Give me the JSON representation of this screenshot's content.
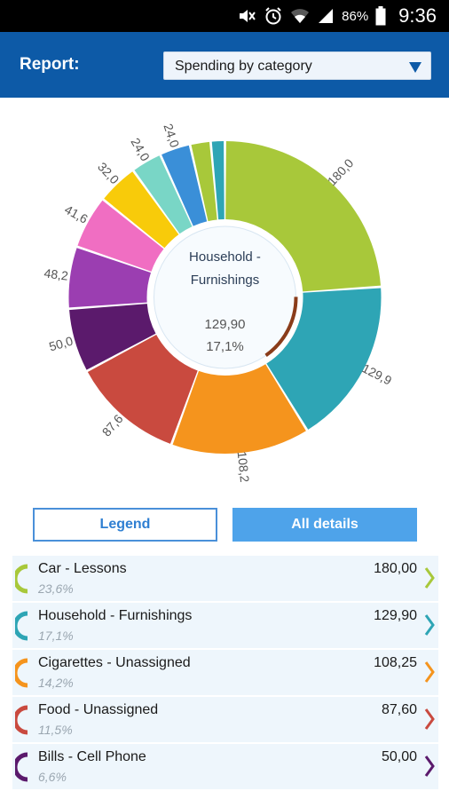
{
  "status_bar": {
    "battery_text": "86%",
    "time": "9:36",
    "icons": [
      "mute-icon",
      "alarm-icon",
      "wifi-icon",
      "signal-icon",
      "battery-icon"
    ]
  },
  "header": {
    "label": "Report:",
    "select_value": "Spending by category"
  },
  "chart_data": {
    "type": "pie",
    "donut": true,
    "center": {
      "title_line1": "Household -",
      "title_line2": "Furnishings",
      "value": "129,90",
      "percent": "17,1%"
    },
    "slices": [
      {
        "label": "180,0",
        "value": 180.0,
        "color": "#a8c83a"
      },
      {
        "label": "129,9",
        "value": 129.9,
        "color": "#2ea5b5"
      },
      {
        "label": "108,2",
        "value": 108.2,
        "color": "#f5941d"
      },
      {
        "label": "87,6",
        "value": 87.6,
        "color": "#c94a3f"
      },
      {
        "label": "50,0",
        "value": 50.0,
        "color": "#5b1a6c"
      },
      {
        "label": "48,2",
        "value": 48.2,
        "color": "#9b3eb1"
      },
      {
        "label": "41,6",
        "value": 41.6,
        "color": "#f06ec2"
      },
      {
        "label": "32,0",
        "value": 32.0,
        "color": "#f8cb0a"
      },
      {
        "label": "24,0",
        "value": 24.0,
        "color": "#79d6c6"
      },
      {
        "label": "24,0",
        "value": 24.0,
        "color": "#3a8fd8"
      },
      {
        "label": "",
        "value": 16.0,
        "color": "#a8c83a"
      },
      {
        "label": "",
        "value": 11.0,
        "color": "#2ea5b5"
      }
    ],
    "highlight_color": "#8a3c1a"
  },
  "buttons": {
    "legend": "Legend",
    "all_details": "All details"
  },
  "list": [
    {
      "name": "Car - Lessons",
      "percent": "23,6%",
      "amount": "180,00",
      "color": "#a8c83a"
    },
    {
      "name": "Household - Furnishings",
      "percent": "17,1%",
      "amount": "129,90",
      "color": "#2ea5b5"
    },
    {
      "name": "Cigarettes - Unassigned",
      "percent": "14,2%",
      "amount": "108,25",
      "color": "#f5941d"
    },
    {
      "name": "Food - Unassigned",
      "percent": "11,5%",
      "amount": "87,60",
      "color": "#c94a3f"
    },
    {
      "name": "Bills - Cell Phone",
      "percent": "6,6%",
      "amount": "50,00",
      "color": "#5b1a6c"
    }
  ]
}
